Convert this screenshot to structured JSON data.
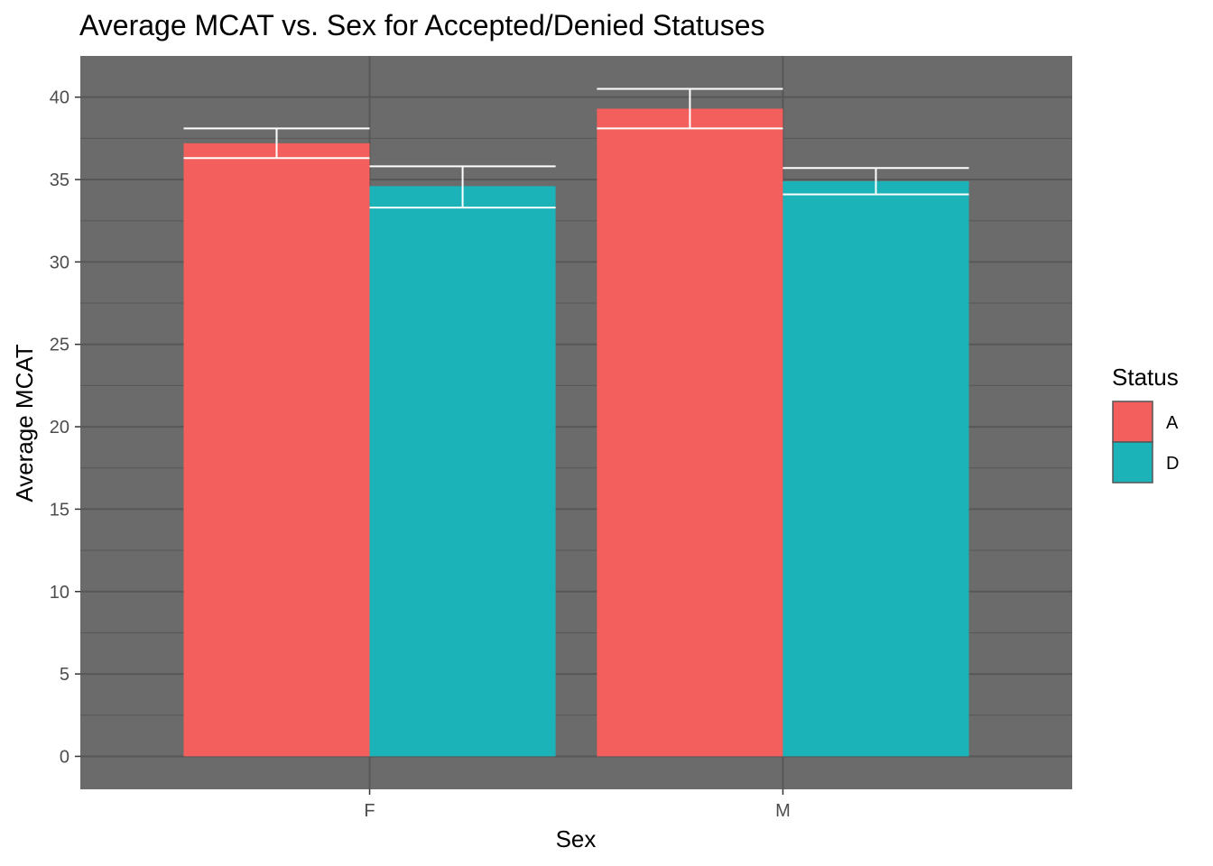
{
  "chart_data": {
    "type": "bar",
    "title": "Average MCAT vs. Sex for Accepted/Denied Statuses",
    "xlabel": "Sex",
    "ylabel": "Average MCAT",
    "categories": [
      "F",
      "M"
    ],
    "ylim": [
      -2,
      42.5
    ],
    "yticks": [
      0,
      5,
      10,
      15,
      20,
      25,
      30,
      35,
      40
    ],
    "grid": true,
    "legend": {
      "title": "Status",
      "position": "right"
    },
    "series": [
      {
        "name": "A",
        "color": "#F25F5C",
        "values": [
          37.2,
          39.3
        ],
        "error_low": [
          36.3,
          38.1
        ],
        "error_high": [
          38.1,
          40.5
        ]
      },
      {
        "name": "D",
        "color": "#1BB3B8",
        "values": [
          34.6,
          34.9
        ],
        "error_low": [
          33.3,
          34.1
        ],
        "error_high": [
          35.8,
          35.7
        ]
      }
    ],
    "colors": {
      "panel": "#6B6B6B",
      "grid": "#575757",
      "errorbar": "#FFFFFF"
    }
  }
}
